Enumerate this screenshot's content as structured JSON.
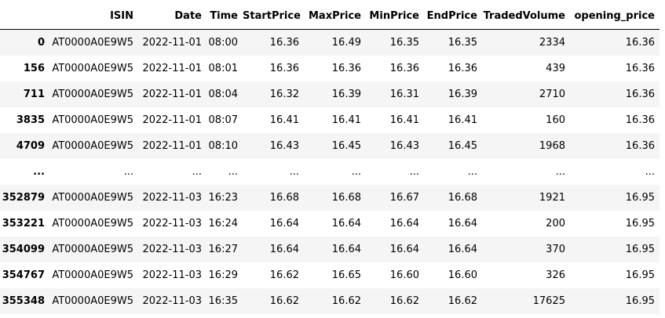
{
  "table": {
    "columns": [
      "",
      "ISIN",
      "Date",
      "Time",
      "StartPrice",
      "MaxPrice",
      "MinPrice",
      "EndPrice",
      "TradedVolume",
      "opening_price"
    ],
    "rows": [
      {
        "index": "0",
        "cells": [
          "AT0000A0E9W5",
          "2022-11-01",
          "08:00",
          "16.36",
          "16.49",
          "16.35",
          "16.35",
          "2334",
          "16.36"
        ]
      },
      {
        "index": "156",
        "cells": [
          "AT0000A0E9W5",
          "2022-11-01",
          "08:01",
          "16.36",
          "16.36",
          "16.36",
          "16.36",
          "439",
          "16.36"
        ]
      },
      {
        "index": "711",
        "cells": [
          "AT0000A0E9W5",
          "2022-11-01",
          "08:04",
          "16.32",
          "16.39",
          "16.31",
          "16.39",
          "2710",
          "16.36"
        ]
      },
      {
        "index": "3835",
        "cells": [
          "AT0000A0E9W5",
          "2022-11-01",
          "08:07",
          "16.41",
          "16.41",
          "16.41",
          "16.41",
          "160",
          "16.36"
        ]
      },
      {
        "index": "4709",
        "cells": [
          "AT0000A0E9W5",
          "2022-11-01",
          "08:10",
          "16.43",
          "16.45",
          "16.43",
          "16.45",
          "1968",
          "16.36"
        ]
      },
      {
        "index": "...",
        "cells": [
          "...",
          "...",
          "...",
          "...",
          "...",
          "...",
          "...",
          "...",
          "..."
        ]
      },
      {
        "index": "352879",
        "cells": [
          "AT0000A0E9W5",
          "2022-11-03",
          "16:23",
          "16.68",
          "16.68",
          "16.67",
          "16.68",
          "1921",
          "16.95"
        ]
      },
      {
        "index": "353221",
        "cells": [
          "AT0000A0E9W5",
          "2022-11-03",
          "16:24",
          "16.64",
          "16.64",
          "16.64",
          "16.64",
          "200",
          "16.95"
        ]
      },
      {
        "index": "354099",
        "cells": [
          "AT0000A0E9W5",
          "2022-11-03",
          "16:27",
          "16.64",
          "16.64",
          "16.64",
          "16.64",
          "370",
          "16.95"
        ]
      },
      {
        "index": "354767",
        "cells": [
          "AT0000A0E9W5",
          "2022-11-03",
          "16:29",
          "16.62",
          "16.65",
          "16.60",
          "16.60",
          "326",
          "16.95"
        ]
      },
      {
        "index": "355348",
        "cells": [
          "AT0000A0E9W5",
          "2022-11-03",
          "16:35",
          "16.62",
          "16.62",
          "16.62",
          "16.62",
          "17625",
          "16.95"
        ]
      }
    ]
  },
  "colors": {
    "stripe": "#f5f5f5",
    "background": "#ffffff",
    "text": "#000000"
  }
}
